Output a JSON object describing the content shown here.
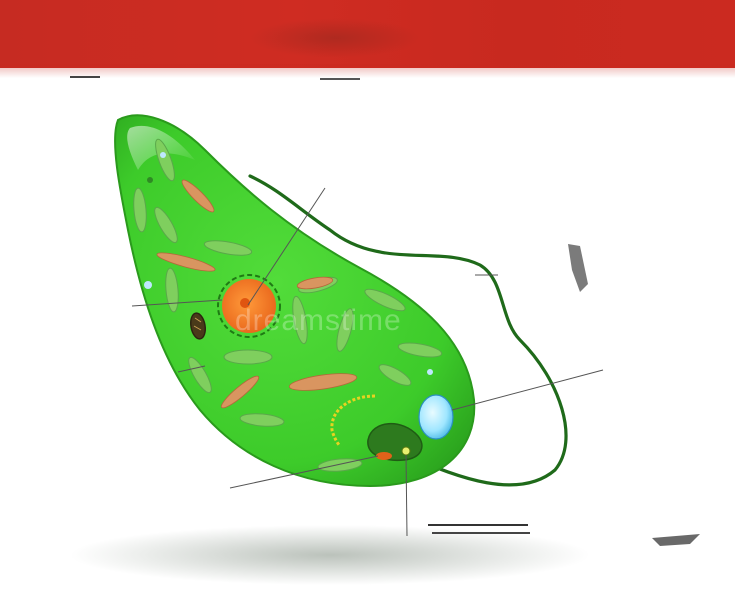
{
  "diagram": {
    "title": "",
    "labels": [],
    "colors": {
      "banner": "#c9291f",
      "cell_body": "#3fcf2c",
      "cell_outline": "#2a9a1c",
      "nucleus": "#f07820",
      "nucleolus": "#e05510",
      "contractile_vacuole": "#9fe6ff",
      "flagellum": "#1f6a1a",
      "chloroplast": "#7ccc5a",
      "paramylon": "#d6895a",
      "eyespot": "#e0621a",
      "leader_line": "#555555"
    },
    "icons": [
      "euglena-cell",
      "nucleus",
      "contractile-vacuole",
      "flagellum",
      "chloroplast",
      "eyespot"
    ]
  }
}
